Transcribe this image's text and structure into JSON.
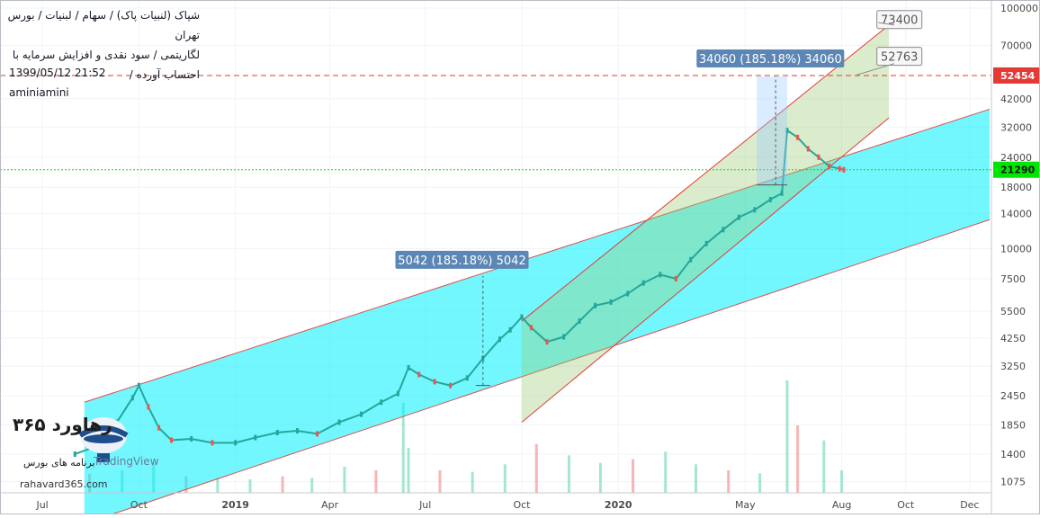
{
  "header": {
    "line1": "شپاک (لنبیات پاک)  /  سهام  /  لبنیات  /  بورس تهران",
    "line2": "لگاریتمی  /  سود نقدی و افزایش سرمایه با احتساب آورده  /"
  },
  "meta": {
    "datetime": "1399/05/12 21:52",
    "author": "aminiamini"
  },
  "watermark": {
    "brand": "۳۶۵ رهاورد",
    "sub": "برنامه های بورس",
    "tv": "TradingView",
    "url": "rahavard365.com"
  },
  "chart_data": {
    "type": "line",
    "scale": "log",
    "ylim": [
      950,
      100000
    ],
    "y_ticks": [
      1075,
      1400,
      1850,
      2450,
      3250,
      4250,
      5500,
      7500,
      10000,
      14000,
      18000,
      24000,
      32000,
      42000,
      70000,
      100000
    ],
    "x_ticks": [
      {
        "label": "Jul",
        "date": "2018-07-01",
        "bold": false
      },
      {
        "label": "Oct",
        "date": "2018-10-01",
        "bold": false
      },
      {
        "label": "2019",
        "date": "2019-01-01",
        "bold": true
      },
      {
        "label": "Apr",
        "date": "2019-04-01",
        "bold": false
      },
      {
        "label": "Jul",
        "date": "2019-07-01",
        "bold": false
      },
      {
        "label": "Oct",
        "date": "2019-10-01",
        "bold": false
      },
      {
        "label": "2020",
        "date": "2020-01-01",
        "bold": true
      },
      {
        "label": "May",
        "date": "2020-05-01",
        "bold": false
      },
      {
        "label": "Aug",
        "date": "2020-08-01",
        "bold": false
      },
      {
        "label": "Oct",
        "date": "2020-10-01",
        "bold": false
      },
      {
        "label": "Dec",
        "date": "2020-12-01",
        "bold": false
      }
    ],
    "series": [
      {
        "x": [
          "2018-08-01",
          "2018-08-20",
          "2018-09-10",
          "2018-09-25",
          "2018-10-01",
          "2018-10-10",
          "2018-10-20",
          "2018-11-01",
          "2018-11-20",
          "2018-12-10",
          "2019-01-01",
          "2019-01-20",
          "2019-02-10",
          "2019-03-01",
          "2019-03-20",
          "2019-04-10",
          "2019-05-01",
          "2019-05-20",
          "2019-06-05",
          "2019-06-15",
          "2019-06-25",
          "2019-07-10",
          "2019-07-25",
          "2019-08-10",
          "2019-08-25",
          "2019-09-10",
          "2019-09-20",
          "2019-10-01",
          "2019-10-10",
          "2019-10-25",
          "2019-11-10",
          "2019-11-25",
          "2019-12-10",
          "2019-12-25",
          "2020-01-10",
          "2020-01-25",
          "2020-02-10",
          "2020-02-25",
          "2020-03-10",
          "2020-03-25",
          "2020-04-10",
          "2020-04-25",
          "2020-05-10",
          "2020-05-25",
          "2020-06-05",
          "2020-06-10",
          "2020-06-20",
          "2020-06-30",
          "2020-07-10",
          "2020-07-20",
          "2020-07-30",
          "2020-08-03"
        ],
        "y": [
          1400,
          1500,
          1900,
          2400,
          2700,
          2200,
          1800,
          1600,
          1620,
          1560,
          1560,
          1640,
          1720,
          1750,
          1700,
          1900,
          2050,
          2300,
          2500,
          3200,
          3000,
          2800,
          2700,
          2900,
          3500,
          4200,
          4600,
          5200,
          4700,
          4100,
          4300,
          5000,
          5800,
          6000,
          6500,
          7200,
          7800,
          7500,
          9000,
          10500,
          12000,
          13500,
          14500,
          16000,
          17000,
          31000,
          29000,
          26000,
          24000,
          22000,
          21500,
          21290
        ]
      }
    ],
    "price_labels": [
      {
        "value": 52454,
        "text": "52454",
        "color": "#e53935"
      },
      {
        "value": 21290,
        "text": "21290",
        "color": "#00e600"
      }
    ],
    "annotations": [
      {
        "text": "5042 (185.18%) 5042"
      },
      {
        "text": "34060 (185.18%) 34060"
      },
      {
        "text": "73400"
      },
      {
        "text": "52763"
      }
    ],
    "volume": {
      "x": [
        "2018-08-15",
        "2018-09-15",
        "2018-10-15",
        "2018-11-15",
        "2018-12-15",
        "2019-01-15",
        "2019-02-15",
        "2019-03-15",
        "2019-04-15",
        "2019-05-15",
        "2019-06-10",
        "2019-06-15",
        "2019-07-15",
        "2019-08-15",
        "2019-09-15",
        "2019-10-15",
        "2019-11-15",
        "2019-12-15",
        "2020-01-15",
        "2020-02-15",
        "2020-03-15",
        "2020-04-15",
        "2020-05-15",
        "2020-06-10",
        "2020-06-20",
        "2020-07-15",
        "2020-08-01"
      ],
      "values": [
        25,
        30,
        40,
        22,
        20,
        18,
        22,
        20,
        35,
        30,
        120,
        60,
        30,
        28,
        38,
        65,
        50,
        40,
        45,
        55,
        38,
        30,
        26,
        150,
        90,
        70,
        30
      ]
    }
  }
}
